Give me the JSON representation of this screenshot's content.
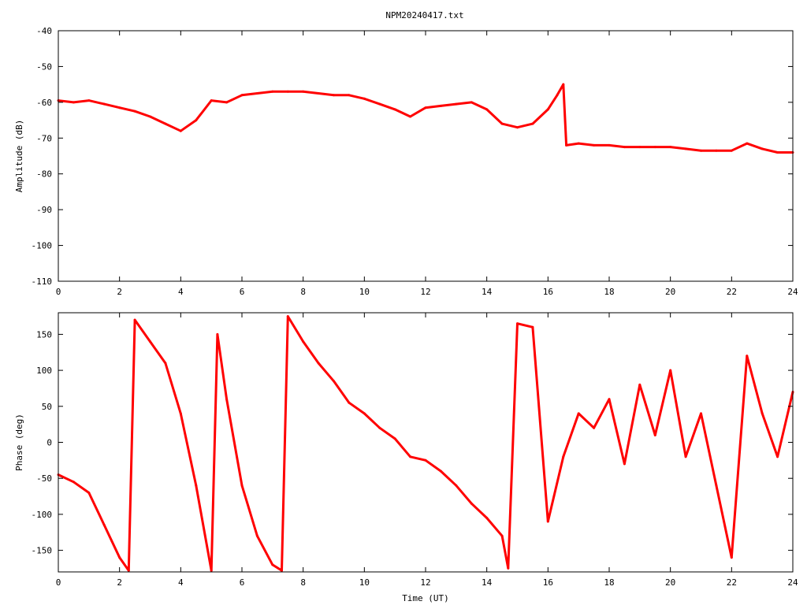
{
  "title": "NPM20240417.txt",
  "colors": {
    "series": "#ff0000",
    "axes": "#000000",
    "background": "#ffffff"
  },
  "chart_data": [
    {
      "type": "line",
      "ylabel": "Amplitude (dB)",
      "xlabel": "",
      "xlim": [
        0,
        24
      ],
      "ylim": [
        -110,
        -40
      ],
      "xticks": [
        "0",
        "2",
        "4",
        "6",
        "8",
        "10",
        "12",
        "14",
        "16",
        "18",
        "20",
        "22",
        "24"
      ],
      "yticks": [
        "-40",
        "-50",
        "-60",
        "-70",
        "-80",
        "-90",
        "-100",
        "-110"
      ],
      "grid": false,
      "series": [
        {
          "x": [
            0,
            0.5,
            1,
            1.5,
            2,
            2.5,
            3,
            3.5,
            4,
            4.5,
            5,
            5.5,
            6,
            6.5,
            7,
            7.5,
            8,
            8.5,
            9,
            9.5,
            10,
            10.5,
            11,
            11.5,
            12,
            12.5,
            13,
            13.5,
            14,
            14.5,
            15,
            15.5,
            16,
            16.3,
            16.5,
            16.6,
            17,
            17.5,
            18,
            18.5,
            19,
            19.5,
            20,
            20.5,
            21,
            21.5,
            22,
            22.5,
            23,
            23.5,
            24
          ],
          "y": [
            -59.5,
            -60,
            -59.5,
            -60.5,
            -61.5,
            -62.5,
            -64,
            -66,
            -68,
            -65,
            -59.5,
            -60,
            -58,
            -57.5,
            -57,
            -57,
            -57,
            -57.5,
            -58,
            -58,
            -59,
            -60.5,
            -62,
            -64,
            -61.5,
            -61,
            -60.5,
            -60,
            -62,
            -66,
            -67,
            -66,
            -62,
            -58,
            -55,
            -72,
            -71.5,
            -72,
            -72,
            -72.5,
            -72.5,
            -72.5,
            -72.5,
            -73,
            -73.5,
            -73.5,
            -73.5,
            -71.5,
            -73,
            -74,
            -74
          ]
        }
      ]
    },
    {
      "type": "line",
      "ylabel": "Phase (deg)",
      "xlabel": "Time (UT)",
      "xlim": [
        0,
        24
      ],
      "ylim": [
        -180,
        180
      ],
      "xticks": [
        "0",
        "2",
        "4",
        "6",
        "8",
        "10",
        "12",
        "14",
        "16",
        "18",
        "20",
        "22",
        "24"
      ],
      "yticks": [
        "150",
        "100",
        "50",
        "0",
        "-50",
        "-100",
        "-150"
      ],
      "grid": false,
      "series": [
        {
          "x": [
            0,
            0.5,
            1,
            1.5,
            2,
            2.3,
            2.5,
            3,
            3.5,
            4,
            4.5,
            5,
            5.2,
            5.5,
            6,
            6.5,
            7,
            7.3,
            7.5,
            8,
            8.5,
            9,
            9.5,
            10,
            10.5,
            11,
            11.5,
            12,
            12.5,
            13,
            13.5,
            14,
            14.5,
            14.7,
            15,
            15.5,
            16,
            16.5,
            17,
            17.5,
            18,
            18.5,
            19,
            19.5,
            20,
            20.5,
            21,
            21.5,
            22,
            22.5,
            23,
            23.5,
            24
          ],
          "y": [
            -45,
            -55,
            -70,
            -115,
            -160,
            -178,
            170,
            140,
            110,
            40,
            -60,
            -178,
            150,
            60,
            -60,
            -130,
            -170,
            -178,
            175,
            140,
            110,
            85,
            55,
            40,
            20,
            5,
            -20,
            -25,
            -40,
            -60,
            -85,
            -105,
            -130,
            -175,
            165,
            160,
            -110,
            -20,
            40,
            20,
            60,
            -30,
            80,
            10,
            100,
            -20,
            40,
            -60,
            -160,
            120,
            40,
            -20,
            70
          ]
        }
      ]
    }
  ]
}
